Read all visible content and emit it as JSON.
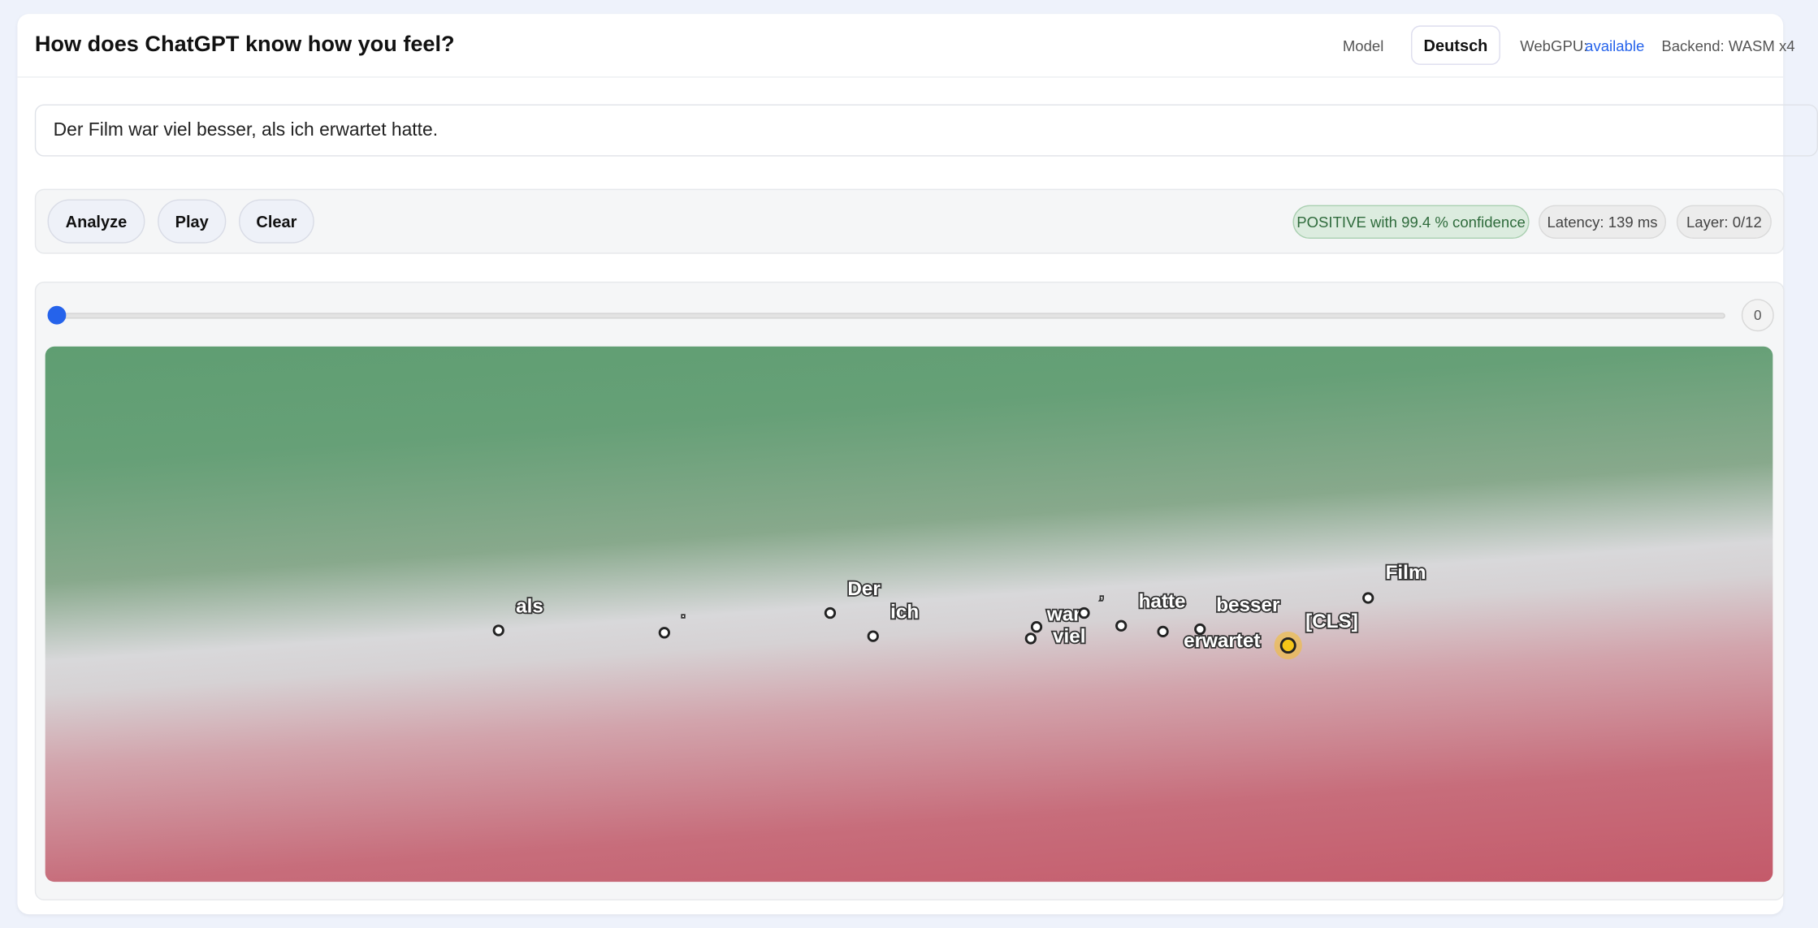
{
  "header": {
    "title": "How does ChatGPT know how you feel?",
    "model": "Model",
    "language": "Deutsch",
    "webgpu_label": "WebGPU:",
    "webgpu_status": "available",
    "backend": "Backend: WASM x4"
  },
  "input": {
    "text": "Der Film war viel besser, als ich erwartet hatte."
  },
  "controls": {
    "buttons": [
      "Analyze",
      "Play",
      "Clear"
    ],
    "result": "POSITIVE with 99.4 % confidence",
    "latency": "Latency: 139 ms",
    "layer": "Layer: 0/12"
  },
  "slider": {
    "value": 0
  },
  "plot": {
    "tokens": [
      "als",
      ".",
      "Der",
      "ich",
      "war",
      "viel",
      ",",
      "hatte",
      "besser",
      "erwartet",
      "[CLS]",
      "Film"
    ]
  }
}
